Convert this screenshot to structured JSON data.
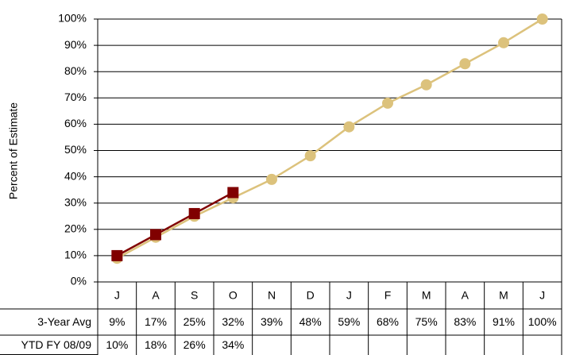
{
  "chart_data": {
    "type": "line",
    "y_label": "Percent of Estimate",
    "categories": [
      "J",
      "A",
      "S",
      "O",
      "N",
      "D",
      "J",
      "F",
      "M",
      "A",
      "M",
      "J"
    ],
    "series": [
      {
        "name": "3-Year Avg",
        "color": "#dcc27c",
        "marker": "circle",
        "values": [
          9,
          17,
          25,
          32,
          39,
          48,
          59,
          68,
          75,
          83,
          91,
          100
        ],
        "value_labels": [
          "9%",
          "17%",
          "25%",
          "32%",
          "39%",
          "48%",
          "59%",
          "68%",
          "75%",
          "83%",
          "91%",
          "100%"
        ]
      },
      {
        "name": "YTD FY 08/09",
        "color": "#800000",
        "marker": "square",
        "values": [
          10,
          18,
          26,
          34,
          null,
          null,
          null,
          null,
          null,
          null,
          null,
          null
        ],
        "value_labels": [
          "10%",
          "18%",
          "26%",
          "34%",
          null,
          null,
          null,
          null,
          null,
          null,
          null,
          null
        ]
      }
    ],
    "ylim": [
      0,
      100
    ],
    "yticks": [
      {
        "value": 0,
        "label": "0%"
      },
      {
        "value": 10,
        "label": "10%"
      },
      {
        "value": 20,
        "label": "20%"
      },
      {
        "value": 30,
        "label": "30%"
      },
      {
        "value": 40,
        "label": "40%"
      },
      {
        "value": 50,
        "label": "50%"
      },
      {
        "value": 60,
        "label": "60%"
      },
      {
        "value": 70,
        "label": "70%"
      },
      {
        "value": 80,
        "label": "80%"
      },
      {
        "value": 90,
        "label": "90%"
      },
      {
        "value": 100,
        "label": "100%"
      }
    ],
    "grid": true
  }
}
